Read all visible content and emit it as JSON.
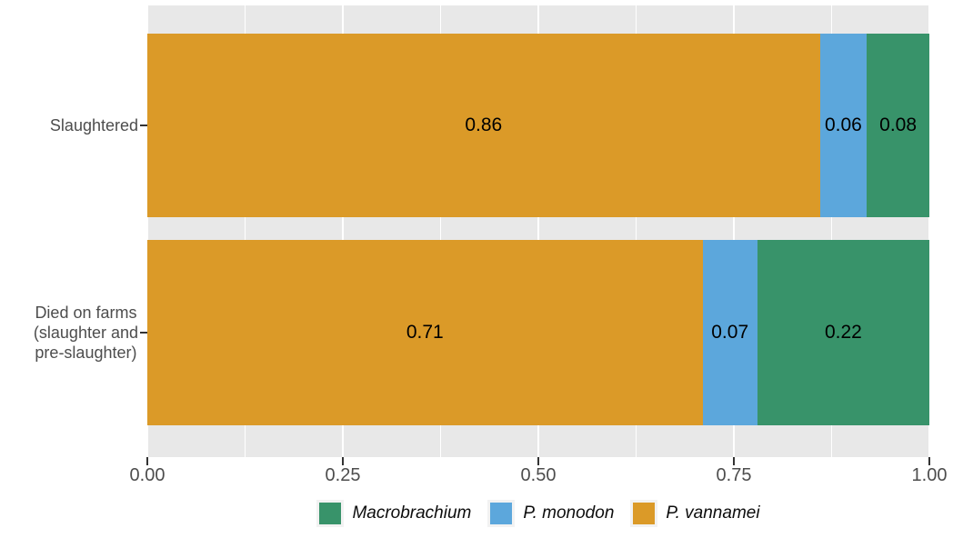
{
  "chart_data": {
    "type": "bar",
    "orientation": "horizontal",
    "stacked": true,
    "title": "",
    "xlabel": "",
    "ylabel": "",
    "xlim": [
      0,
      1
    ],
    "grid": "on",
    "panel_background": "#E8E8E8",
    "gridline_color": "#FFFFFF",
    "axis_text_color": "#4D4D4D",
    "tick_mark_color": "#333333",
    "categories": [
      {
        "name": "Slaughtered",
        "label_lines": [
          "Slaughtered"
        ]
      },
      {
        "name": "Died on farms (slaughter and pre-slaughter)",
        "label_lines": [
          "Died on farms",
          "(slaughter and",
          "pre-slaughter)"
        ]
      }
    ],
    "series": [
      {
        "name": "P. vannamei",
        "color": "#DB9A28",
        "values": [
          0.86,
          0.71
        ]
      },
      {
        "name": "P. monodon",
        "color": "#5CA7DC",
        "values": [
          0.06,
          0.07
        ]
      },
      {
        "name": "Macrobrachium",
        "color": "#38936A",
        "values": [
          0.08,
          0.22
        ]
      }
    ],
    "value_labels": [
      [
        "0.86",
        "0.06",
        "0.08"
      ],
      [
        "0.71",
        "0.07",
        "0.22"
      ]
    ],
    "x_ticks": [
      {
        "label": "0.00",
        "value": 0.0
      },
      {
        "label": "0.25",
        "value": 0.25
      },
      {
        "label": "0.50",
        "value": 0.5
      },
      {
        "label": "0.75",
        "value": 0.75
      },
      {
        "label": "1.00",
        "value": 1.0
      }
    ],
    "minor_gridlines": [
      0.125,
      0.375,
      0.625,
      0.875
    ],
    "legend": {
      "position": "bottom",
      "items": [
        {
          "label": "Macrobrachium",
          "color": "#38936A"
        },
        {
          "label": "P. monodon",
          "color": "#5CA7DC"
        },
        {
          "label": "P. vannamei",
          "color": "#DB9A28"
        }
      ]
    }
  }
}
